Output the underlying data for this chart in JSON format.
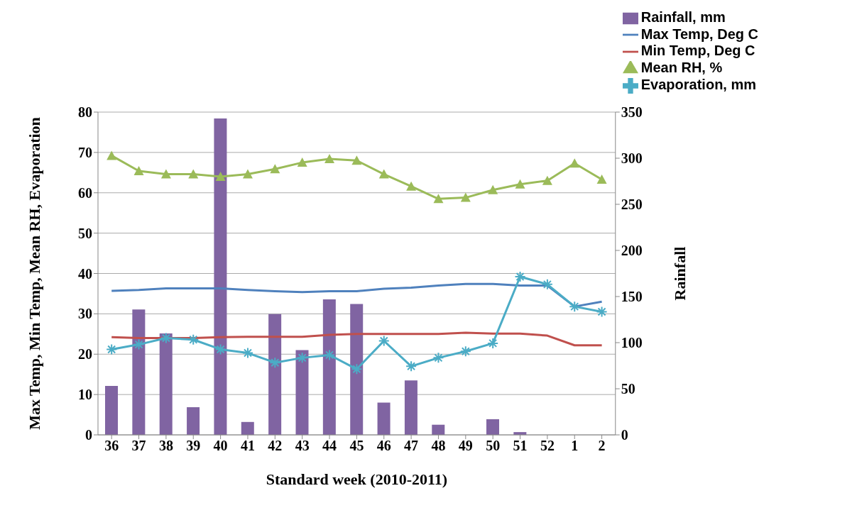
{
  "chart_data": {
    "type": "line",
    "xlabel": "Standard week (2010-2011)",
    "ylabel": "Max Temp, Min Temp, Mean RH, Evaporation",
    "y2label": "Rainfall",
    "categories": [
      "36",
      "37",
      "38",
      "39",
      "40",
      "41",
      "42",
      "43",
      "44",
      "45",
      "46",
      "47",
      "48",
      "49",
      "50",
      "51",
      "52",
      "1",
      "2"
    ],
    "series": [
      {
        "name": "Rainfall, mm",
        "type": "bar",
        "axis": "y2",
        "color": "#8064a2",
        "values": [
          53,
          136,
          110,
          30,
          343,
          14,
          131,
          92,
          147,
          142,
          35,
          59,
          11,
          0,
          17,
          3,
          0,
          0,
          0
        ]
      },
      {
        "name": "Max Temp, Deg C",
        "color": "#4f81bd",
        "marker": "none",
        "values": [
          35.7,
          35.9,
          36.3,
          36.3,
          36.3,
          35.9,
          35.6,
          35.4,
          35.6,
          35.6,
          36.2,
          36.5,
          37,
          37.4,
          37.4,
          37,
          37,
          31.8,
          33
        ]
      },
      {
        "name": "Min Temp, Deg C",
        "color": "#c0504d",
        "marker": "none",
        "values": [
          24.2,
          24,
          24,
          24,
          24.2,
          24.3,
          24.3,
          24.3,
          24.8,
          25,
          25,
          25,
          25,
          25.3,
          25.1,
          25.1,
          24.6,
          22.2,
          22.2
        ]
      },
      {
        "name": "Mean RH, %",
        "color": "#9bbb59",
        "marker": "triangle",
        "values": [
          69.2,
          65.4,
          64.6,
          64.6,
          64,
          64.6,
          65.9,
          67.5,
          68.4,
          68,
          64.6,
          61.6,
          58.5,
          58.8,
          60.7,
          62.1,
          63,
          67.3,
          63.3
        ]
      },
      {
        "name": "Evaporation, mm",
        "color": "#4bacc6",
        "marker": "cross",
        "values": [
          21.2,
          22.4,
          24,
          23.6,
          21.2,
          20.3,
          17.9,
          19.1,
          19.8,
          16.3,
          23.3,
          17,
          19.1,
          20.7,
          22.7,
          39.2,
          37.3,
          31.8,
          30.5
        ]
      }
    ],
    "ylim": [
      0,
      80
    ],
    "yticks": [
      0,
      10,
      20,
      30,
      40,
      50,
      60,
      70,
      80
    ],
    "y2lim": [
      0,
      350
    ],
    "y2ticks": [
      0,
      50,
      100,
      150,
      200,
      250,
      300,
      350
    ],
    "grid": "y",
    "legend": "top right"
  }
}
